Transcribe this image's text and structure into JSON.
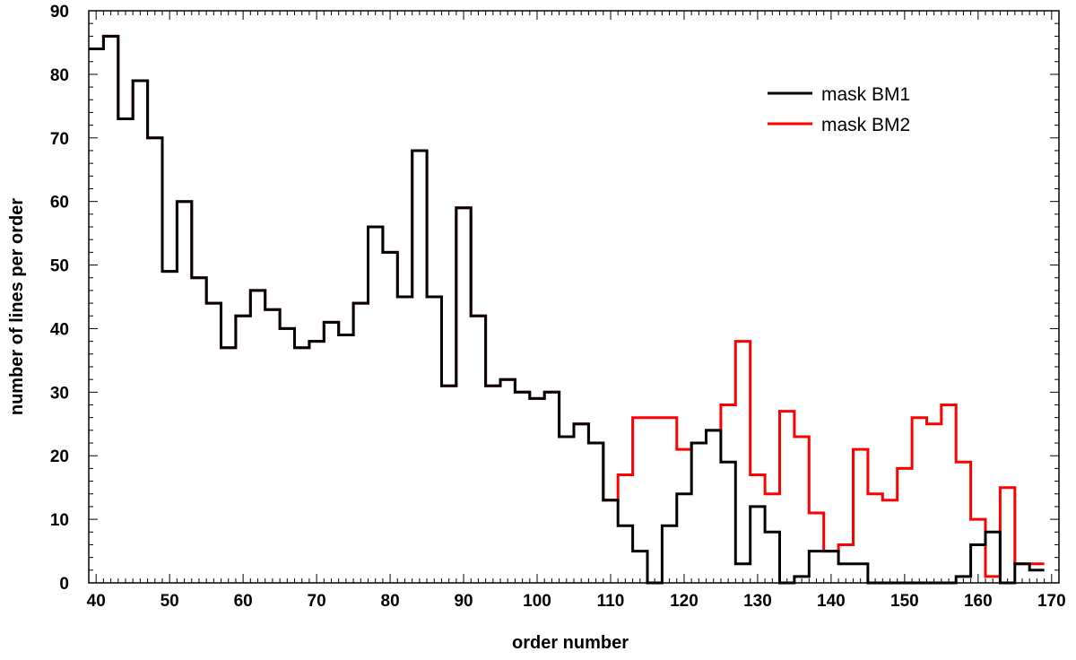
{
  "chart_data": {
    "type": "line",
    "step": true,
    "title": "",
    "xlabel": "order number",
    "ylabel": "number of lines per order",
    "xlim": [
      39,
      171
    ],
    "ylim": [
      0,
      90
    ],
    "xticks": [
      40,
      50,
      60,
      70,
      80,
      90,
      100,
      110,
      120,
      130,
      140,
      150,
      160,
      170
    ],
    "yticks": [
      0,
      10,
      20,
      30,
      40,
      50,
      60,
      70,
      80,
      90
    ],
    "legend": "top-right",
    "grid": false,
    "x": [
      39,
      41,
      43,
      45,
      47,
      49,
      51,
      53,
      55,
      57,
      59,
      61,
      63,
      65,
      67,
      69,
      71,
      73,
      75,
      77,
      79,
      81,
      83,
      85,
      87,
      89,
      91,
      93,
      95,
      97,
      99,
      101,
      103,
      105,
      107,
      109,
      111,
      113,
      115,
      117,
      119,
      121,
      123,
      125,
      127,
      129,
      131,
      133,
      135,
      137,
      139,
      141,
      143,
      145,
      147,
      149,
      151,
      153,
      155,
      157,
      159,
      161,
      163,
      165,
      167
    ],
    "series": [
      {
        "name": "mask BM1",
        "color": "#000000",
        "values": [
          84,
          86,
          73,
          79,
          70,
          49,
          60,
          48,
          44,
          37,
          42,
          46,
          43,
          40,
          37,
          38,
          41,
          39,
          44,
          56,
          52,
          45,
          68,
          45,
          31,
          59,
          42,
          31,
          32,
          30,
          29,
          30,
          23,
          25,
          22,
          13,
          9,
          5,
          0,
          9,
          14,
          22,
          24,
          19,
          3,
          12,
          8,
          0,
          1,
          5,
          5,
          3,
          3,
          0,
          0,
          0,
          0,
          0,
          0,
          1,
          6,
          8,
          0,
          3,
          2
        ]
      },
      {
        "name": "mask BM2",
        "color": "#ff0000",
        "values": [
          84,
          86,
          73,
          79,
          70,
          49,
          60,
          48,
          44,
          37,
          42,
          46,
          43,
          40,
          37,
          38,
          41,
          39,
          44,
          56,
          52,
          45,
          68,
          45,
          31,
          59,
          42,
          31,
          32,
          30,
          29,
          30,
          23,
          25,
          22,
          13,
          17,
          26,
          26,
          26,
          21,
          22,
          24,
          28,
          38,
          17,
          14,
          27,
          23,
          11,
          5,
          6,
          21,
          14,
          13,
          18,
          26,
          25,
          28,
          19,
          10,
          1,
          15,
          3,
          3
        ]
      }
    ]
  }
}
